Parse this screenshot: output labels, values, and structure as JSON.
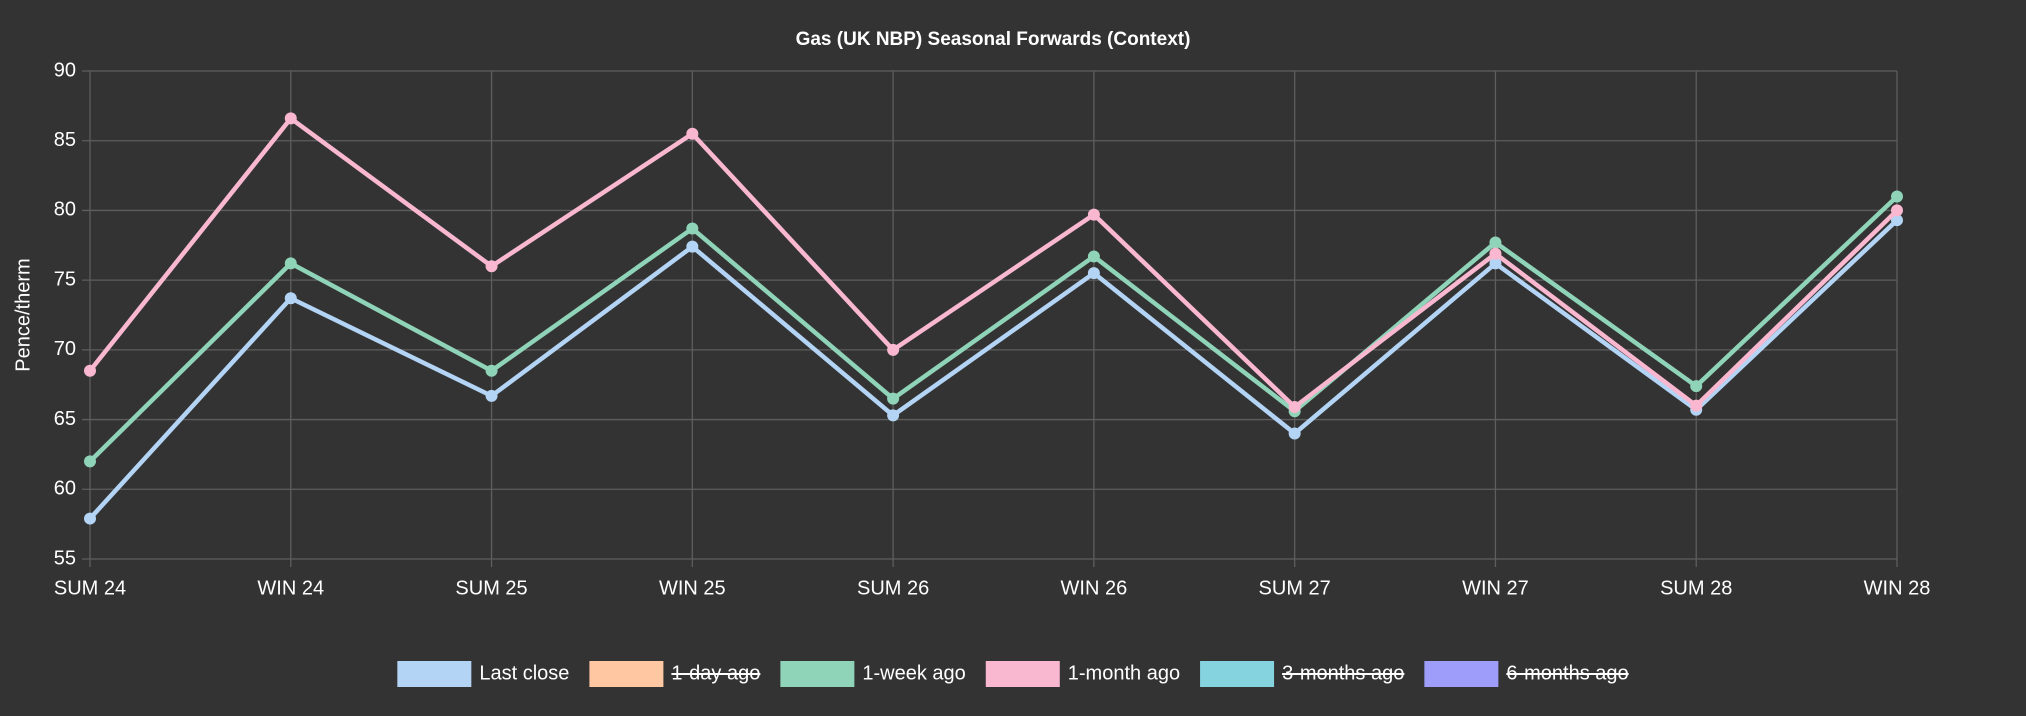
{
  "chart_data": {
    "type": "line",
    "title": "Gas (UK NBP) Seasonal Forwards (Context)",
    "y_label": "Pence/therm",
    "categories": [
      "SUM 24",
      "WIN 24",
      "SUM 25",
      "WIN 25",
      "SUM 26",
      "WIN 26",
      "SUM 27",
      "WIN 27",
      "SUM 28",
      "WIN 28"
    ],
    "series": [
      {
        "name": "Last close",
        "color": "#b3d4f5",
        "hidden": false,
        "values": [
          57.9,
          73.7,
          66.7,
          77.4,
          65.3,
          75.5,
          64.0,
          76.2,
          65.7,
          79.3
        ]
      },
      {
        "name": "1-day ago",
        "color": "#ffc8a2",
        "hidden": true,
        "values": [
          null,
          null,
          null,
          null,
          null,
          null,
          null,
          null,
          null,
          null
        ]
      },
      {
        "name": "1-week ago",
        "color": "#8fd3b9",
        "hidden": false,
        "values": [
          62.0,
          76.2,
          68.5,
          78.7,
          66.5,
          76.7,
          65.6,
          77.7,
          67.4,
          81.0
        ]
      },
      {
        "name": "1-month ago",
        "color": "#f9b8cf",
        "hidden": false,
        "values": [
          68.5,
          86.6,
          76.0,
          85.5,
          70.0,
          79.7,
          65.9,
          76.9,
          66.0,
          80.0
        ]
      },
      {
        "name": "3-months ago",
        "color": "#85d3df",
        "hidden": true,
        "values": [
          null,
          null,
          null,
          null,
          null,
          null,
          null,
          null,
          null,
          null
        ]
      },
      {
        "name": "6-months ago",
        "color": "#9e9efa",
        "hidden": true,
        "values": [
          null,
          null,
          null,
          null,
          null,
          null,
          null,
          null,
          null,
          null
        ]
      }
    ],
    "ylim": [
      55,
      90
    ],
    "yticks": [
      55,
      60,
      65,
      70,
      75,
      80,
      85,
      90
    ],
    "grid": true,
    "legend": "bottom"
  }
}
